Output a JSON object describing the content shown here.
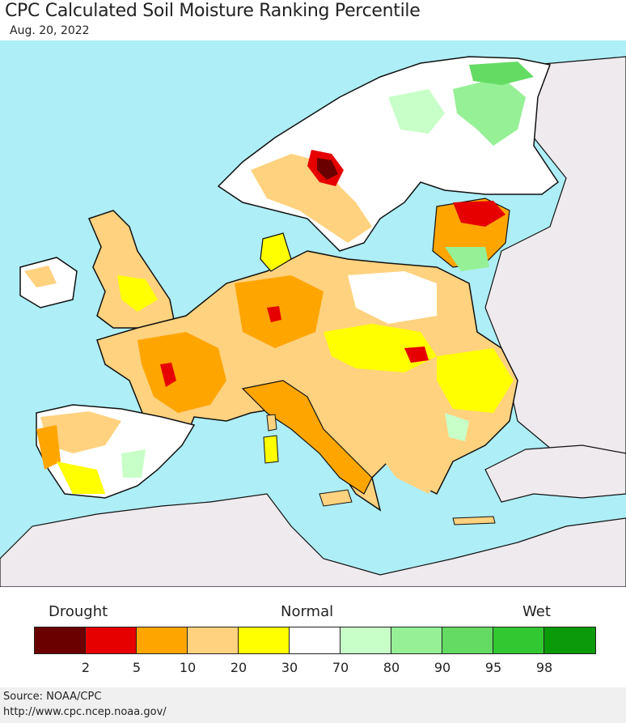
{
  "title": "CPC Calculated Soil Moisture Ranking Percentile",
  "date": "Aug. 20, 2022",
  "legend": {
    "drought_label": "Drought",
    "normal_label": "Normal",
    "wet_label": "Wet",
    "colors": [
      "#6b0000",
      "#e60000",
      "#ffa500",
      "#ffd27f",
      "#ffff00",
      "#ffffff",
      "#c8ffc8",
      "#96f096",
      "#64dc64",
      "#32c832",
      "#0a9a0a"
    ],
    "ticks": [
      "2",
      "5",
      "10",
      "20",
      "30",
      "70",
      "80",
      "90",
      "95",
      "98"
    ]
  },
  "source": "Source: NOAA/CPC",
  "url": "http://www.cpc.ncep.noaa.gov/"
}
